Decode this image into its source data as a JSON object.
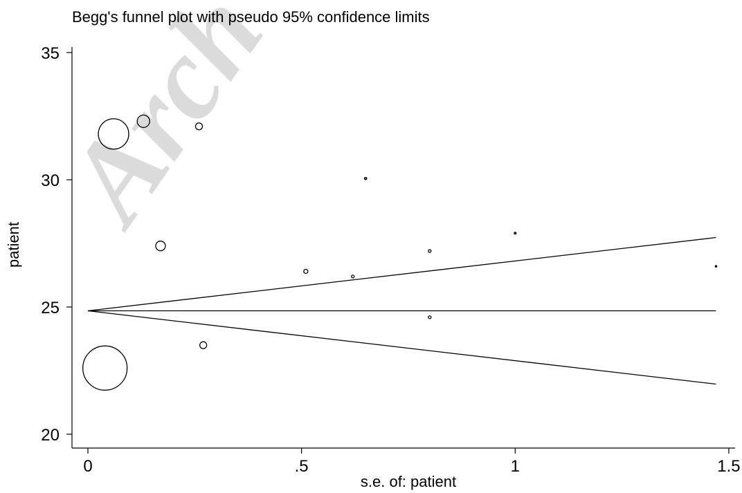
{
  "chart_data": {
    "type": "scatter",
    "title": "Begg's funnel plot with pseudo 95% confidence limits",
    "xlabel": "s.e. of: patient",
    "ylabel": "patient",
    "xlim": [
      0,
      1.5
    ],
    "ylim": [
      20,
      35
    ],
    "x_ticks": [
      0,
      0.5,
      1,
      1.5
    ],
    "x_tick_labels": [
      "0",
      ".5",
      "1",
      "1.5"
    ],
    "y_ticks": [
      20,
      25,
      30,
      35
    ],
    "y_tick_labels": [
      "20",
      "25",
      "30",
      "35"
    ],
    "grid": false,
    "watermark": "Arch",
    "pooled_estimate": 24.85,
    "confidence_limits": {
      "se": [
        0,
        1.47
      ],
      "upper": [
        24.85,
        27.73
      ],
      "lower": [
        24.85,
        21.97
      ]
    },
    "points": [
      {
        "x": 0.04,
        "y": 22.6,
        "r": 32
      },
      {
        "x": 0.06,
        "y": 31.8,
        "r": 22
      },
      {
        "x": 0.13,
        "y": 32.3,
        "r": 9
      },
      {
        "x": 0.17,
        "y": 27.4,
        "r": 7
      },
      {
        "x": 0.26,
        "y": 32.1,
        "r": 5
      },
      {
        "x": 0.27,
        "y": 23.5,
        "r": 5
      },
      {
        "x": 0.51,
        "y": 26.4,
        "r": 3
      },
      {
        "x": 0.62,
        "y": 26.2,
        "r": 2
      },
      {
        "x": 0.65,
        "y": 30.05,
        "r": 1.5
      },
      {
        "x": 0.8,
        "y": 27.2,
        "r": 2
      },
      {
        "x": 0.8,
        "y": 24.6,
        "r": 2
      },
      {
        "x": 1.0,
        "y": 27.9,
        "r": 1.2
      },
      {
        "x": 1.47,
        "y": 26.6,
        "r": 1
      }
    ]
  }
}
